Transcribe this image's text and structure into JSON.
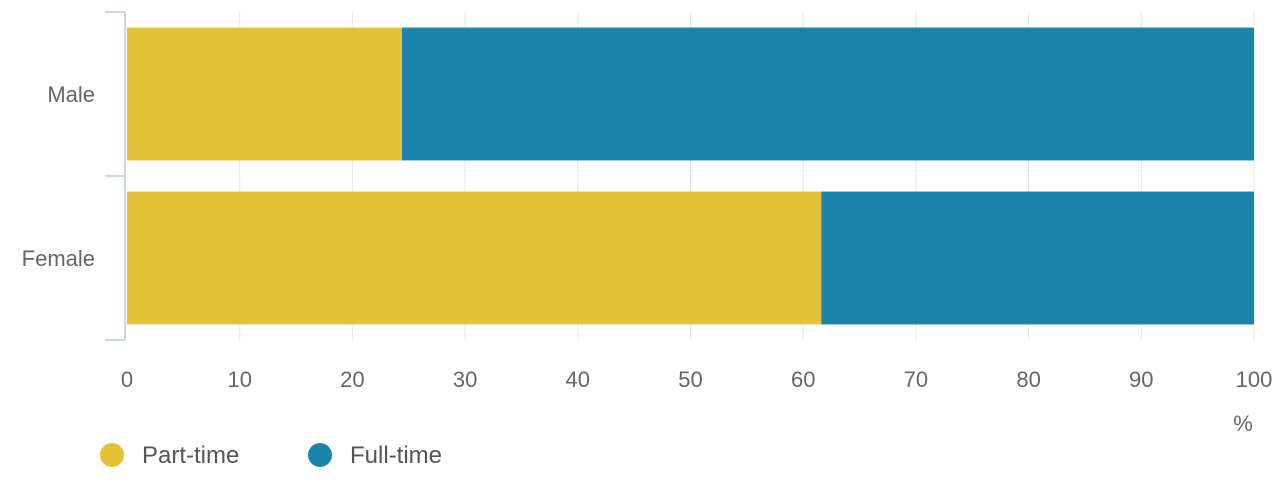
{
  "chart_data": {
    "type": "bar",
    "orientation": "horizontal",
    "stacked": true,
    "categories": [
      "Male",
      "Female"
    ],
    "series": [
      {
        "name": "Part-time",
        "values": [
          24.4,
          61.6
        ],
        "color": "#E3C238"
      },
      {
        "name": "Full-time",
        "values": [
          75.6,
          38.4
        ],
        "color": "#1B84AC"
      }
    ],
    "xlim": [
      0,
      100
    ],
    "xticks": [
      0,
      10,
      20,
      30,
      40,
      50,
      60,
      70,
      80,
      90,
      100
    ],
    "xlabel": "%",
    "ylabel": "",
    "title": "",
    "grid": "vertical",
    "legend": {
      "position": "bottom-left"
    }
  }
}
